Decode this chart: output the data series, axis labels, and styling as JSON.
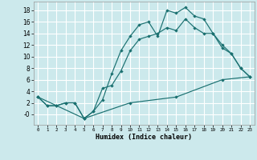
{
  "xlabel": "Humidex (Indice chaleur)",
  "bg_color": "#cce9ec",
  "grid_color": "#ffffff",
  "line_color": "#1a7070",
  "xlim": [
    -0.5,
    23.5
  ],
  "ylim": [
    -1.8,
    19.5
  ],
  "xticks": [
    0,
    1,
    2,
    3,
    4,
    5,
    6,
    7,
    8,
    9,
    10,
    11,
    12,
    13,
    14,
    15,
    16,
    17,
    18,
    19,
    20,
    21,
    22,
    23
  ],
  "yticks": [
    0,
    2,
    4,
    6,
    8,
    10,
    12,
    14,
    16,
    18
  ],
  "ytick_labels": [
    "-0",
    "2",
    "4",
    "6",
    "8",
    "10",
    "12",
    "14",
    "16",
    "18"
  ],
  "line1_x": [
    0,
    1,
    2,
    3,
    4,
    5,
    6,
    7,
    8,
    9,
    10,
    11,
    12,
    13,
    14,
    15,
    16,
    17,
    18,
    19,
    20,
    21,
    22,
    23
  ],
  "line1_y": [
    3,
    1.5,
    1.5,
    2,
    2,
    -0.7,
    0.5,
    2.5,
    7,
    11,
    13.5,
    15.5,
    16,
    13.5,
    18,
    17.5,
    18.5,
    17,
    16.5,
    14,
    12,
    10.5,
    8,
    6.5
  ],
  "line2_x": [
    0,
    1,
    2,
    3,
    4,
    5,
    6,
    7,
    8,
    9,
    10,
    11,
    12,
    13,
    14,
    15,
    16,
    17,
    18,
    19,
    20,
    21,
    22,
    23
  ],
  "line2_y": [
    3,
    1.5,
    1.5,
    2,
    2,
    -0.7,
    0.5,
    4.5,
    5,
    7.5,
    11,
    13,
    13.5,
    14,
    15,
    14.5,
    16.5,
    15,
    14,
    14,
    11.5,
    10.5,
    8,
    6.5
  ],
  "line3_x": [
    0,
    5,
    10,
    15,
    20,
    23
  ],
  "line3_y": [
    3,
    -0.7,
    2,
    3,
    6,
    6.5
  ]
}
